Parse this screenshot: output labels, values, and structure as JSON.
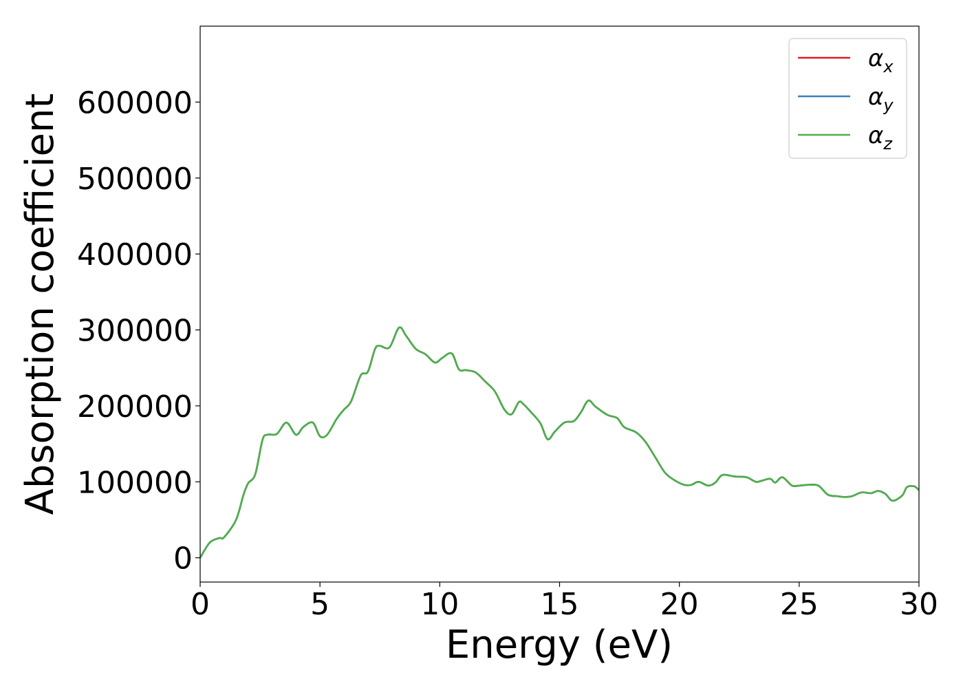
{
  "chart_data": {
    "type": "line",
    "title": "",
    "xlabel": "Energy (eV)",
    "ylabel": "Absorption coefficient",
    "xlim": [
      0,
      30
    ],
    "ylim": [
      -32000,
      700000
    ],
    "xticks": [
      0,
      5,
      10,
      15,
      20,
      25,
      30
    ],
    "yticks": [
      0,
      100000,
      200000,
      300000,
      400000,
      500000,
      600000
    ],
    "xtick_labels": [
      "0",
      "5",
      "10",
      "15",
      "20",
      "25",
      "30"
    ],
    "ytick_labels": [
      "0",
      "100000",
      "200000",
      "300000",
      "400000",
      "500000",
      "600000"
    ],
    "grid": false,
    "legend_position": "top-right",
    "x": [
      0,
      0.4,
      0.8,
      1.0,
      1.5,
      1.8,
      2.0,
      2.3,
      2.6,
      2.8,
      3.2,
      3.6,
      4.0,
      4.3,
      4.7,
      5.0,
      5.3,
      5.7,
      6.0,
      6.3,
      6.7,
      7.0,
      7.3,
      7.5,
      7.9,
      8.3,
      8.6,
      9.0,
      9.4,
      9.8,
      10.1,
      10.5,
      10.8,
      11.1,
      11.5,
      11.9,
      12.3,
      12.7,
      13.0,
      13.3,
      13.5,
      13.8,
      14.2,
      14.5,
      14.8,
      15.2,
      15.6,
      15.9,
      16.2,
      16.5,
      17.0,
      17.4,
      17.7,
      18.2,
      18.6,
      19.0,
      19.4,
      19.8,
      20.2,
      20.5,
      20.8,
      21.2,
      21.5,
      21.8,
      22.3,
      22.8,
      23.2,
      23.5,
      23.8,
      24.0,
      24.3,
      24.7,
      25.0,
      25.4,
      25.8,
      26.2,
      26.6,
      26.9,
      27.2,
      27.6,
      28.0,
      28.3,
      28.6,
      28.9,
      29.3,
      29.5,
      29.8,
      30.0
    ],
    "series": [
      {
        "name": "α_x",
        "color": "#e41a1c",
        "values": [
          0,
          20000,
          26000,
          27000,
          50000,
          82000,
          98000,
          110000,
          155000,
          162000,
          163000,
          178000,
          162000,
          172000,
          178000,
          160000,
          162000,
          183000,
          195000,
          206000,
          240000,
          245000,
          275000,
          279000,
          277000,
          303000,
          292000,
          275000,
          268000,
          257000,
          263000,
          269000,
          248000,
          247000,
          244000,
          232000,
          219000,
          195000,
          189000,
          205000,
          202000,
          192000,
          177000,
          156000,
          166000,
          178000,
          180000,
          192000,
          207000,
          199000,
          188000,
          184000,
          172000,
          165000,
          152000,
          132000,
          112000,
          102000,
          96000,
          96000,
          100000,
          95000,
          99000,
          109000,
          107000,
          106000,
          100000,
          102000,
          104000,
          99000,
          106000,
          95000,
          95000,
          96000,
          95000,
          83000,
          81000,
          80000,
          81000,
          86000,
          85000,
          88000,
          84000,
          75000,
          82000,
          93000,
          94000,
          89000
        ]
      },
      {
        "name": "α_y",
        "color": "#377eb8",
        "values": [
          0,
          20000,
          26000,
          27000,
          50000,
          82000,
          98000,
          110000,
          155000,
          162000,
          163000,
          178000,
          162000,
          172000,
          178000,
          160000,
          162000,
          183000,
          195000,
          206000,
          240000,
          245000,
          275000,
          279000,
          277000,
          303000,
          292000,
          275000,
          268000,
          257000,
          263000,
          269000,
          248000,
          247000,
          244000,
          232000,
          219000,
          195000,
          189000,
          205000,
          202000,
          192000,
          177000,
          156000,
          166000,
          178000,
          180000,
          192000,
          207000,
          199000,
          188000,
          184000,
          172000,
          165000,
          152000,
          132000,
          112000,
          102000,
          96000,
          96000,
          100000,
          95000,
          99000,
          109000,
          107000,
          106000,
          100000,
          102000,
          104000,
          99000,
          106000,
          95000,
          95000,
          96000,
          95000,
          83000,
          81000,
          80000,
          81000,
          86000,
          85000,
          88000,
          84000,
          75000,
          82000,
          93000,
          94000,
          89000
        ]
      },
      {
        "name": "α_z",
        "color": "#4daf4a",
        "values": [
          0,
          20000,
          26000,
          27000,
          50000,
          82000,
          98000,
          110000,
          155000,
          162000,
          163000,
          178000,
          162000,
          172000,
          178000,
          160000,
          162000,
          183000,
          195000,
          206000,
          240000,
          245000,
          275000,
          279000,
          277000,
          303000,
          292000,
          275000,
          268000,
          257000,
          263000,
          269000,
          248000,
          247000,
          244000,
          232000,
          219000,
          195000,
          189000,
          205000,
          202000,
          192000,
          177000,
          156000,
          166000,
          178000,
          180000,
          192000,
          207000,
          199000,
          188000,
          184000,
          172000,
          165000,
          152000,
          132000,
          112000,
          102000,
          96000,
          96000,
          100000,
          95000,
          99000,
          109000,
          107000,
          106000,
          100000,
          102000,
          104000,
          99000,
          106000,
          95000,
          95000,
          96000,
          95000,
          83000,
          81000,
          80000,
          81000,
          86000,
          85000,
          88000,
          84000,
          75000,
          82000,
          93000,
          94000,
          89000
        ]
      }
    ],
    "legend": [
      {
        "symbol": "α",
        "subscript": "x",
        "color": "#e41a1c"
      },
      {
        "symbol": "α",
        "subscript": "y",
        "color": "#377eb8"
      },
      {
        "symbol": "α",
        "subscript": "z",
        "color": "#4daf4a"
      }
    ]
  }
}
